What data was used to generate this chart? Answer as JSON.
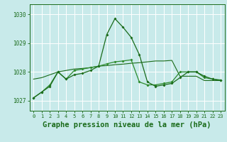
{
  "bg_color": "#c8eaea",
  "grid_color": "#ffffff",
  "line_color_main": "#1a6b1a",
  "line_color_secondary": "#2d8b2d",
  "xlabel": "Graphe pression niveau de la mer (hPa)",
  "xlabel_fontsize": 7.5,
  "ylabel_ticks": [
    1027,
    1028,
    1029,
    1030
  ],
  "xlim": [
    -0.5,
    23.5
  ],
  "ylim": [
    1026.65,
    1030.35
  ],
  "x_ticks": [
    0,
    1,
    2,
    3,
    4,
    5,
    6,
    7,
    8,
    9,
    10,
    11,
    12,
    13,
    14,
    15,
    16,
    17,
    18,
    19,
    20,
    21,
    22,
    23
  ],
  "series1": [
    1027.1,
    1027.3,
    1027.5,
    1028.0,
    1027.75,
    1027.9,
    1027.95,
    1028.05,
    1028.2,
    1029.3,
    1029.85,
    1029.55,
    1029.2,
    1028.6,
    1027.65,
    1027.5,
    1027.55,
    1027.6,
    1027.8,
    1028.0,
    1028.0,
    1027.85,
    1027.75,
    1027.7
  ],
  "series2": [
    1027.75,
    1027.8,
    1027.9,
    1028.0,
    1028.05,
    1028.1,
    1028.12,
    1028.15,
    1028.2,
    1028.22,
    1028.25,
    1028.27,
    1028.3,
    1028.32,
    1028.35,
    1028.38,
    1028.38,
    1028.4,
    1027.85,
    1027.85,
    1027.85,
    1027.7,
    1027.7,
    1027.7
  ],
  "series3": [
    1027.1,
    1027.3,
    1027.55,
    1028.0,
    1027.75,
    1028.05,
    1028.1,
    1028.15,
    1028.2,
    1028.28,
    1028.35,
    1028.38,
    1028.42,
    1027.65,
    1027.55,
    1027.55,
    1027.6,
    1027.65,
    1028.0,
    1028.0,
    1028.0,
    1027.8,
    1027.75,
    1027.72
  ]
}
